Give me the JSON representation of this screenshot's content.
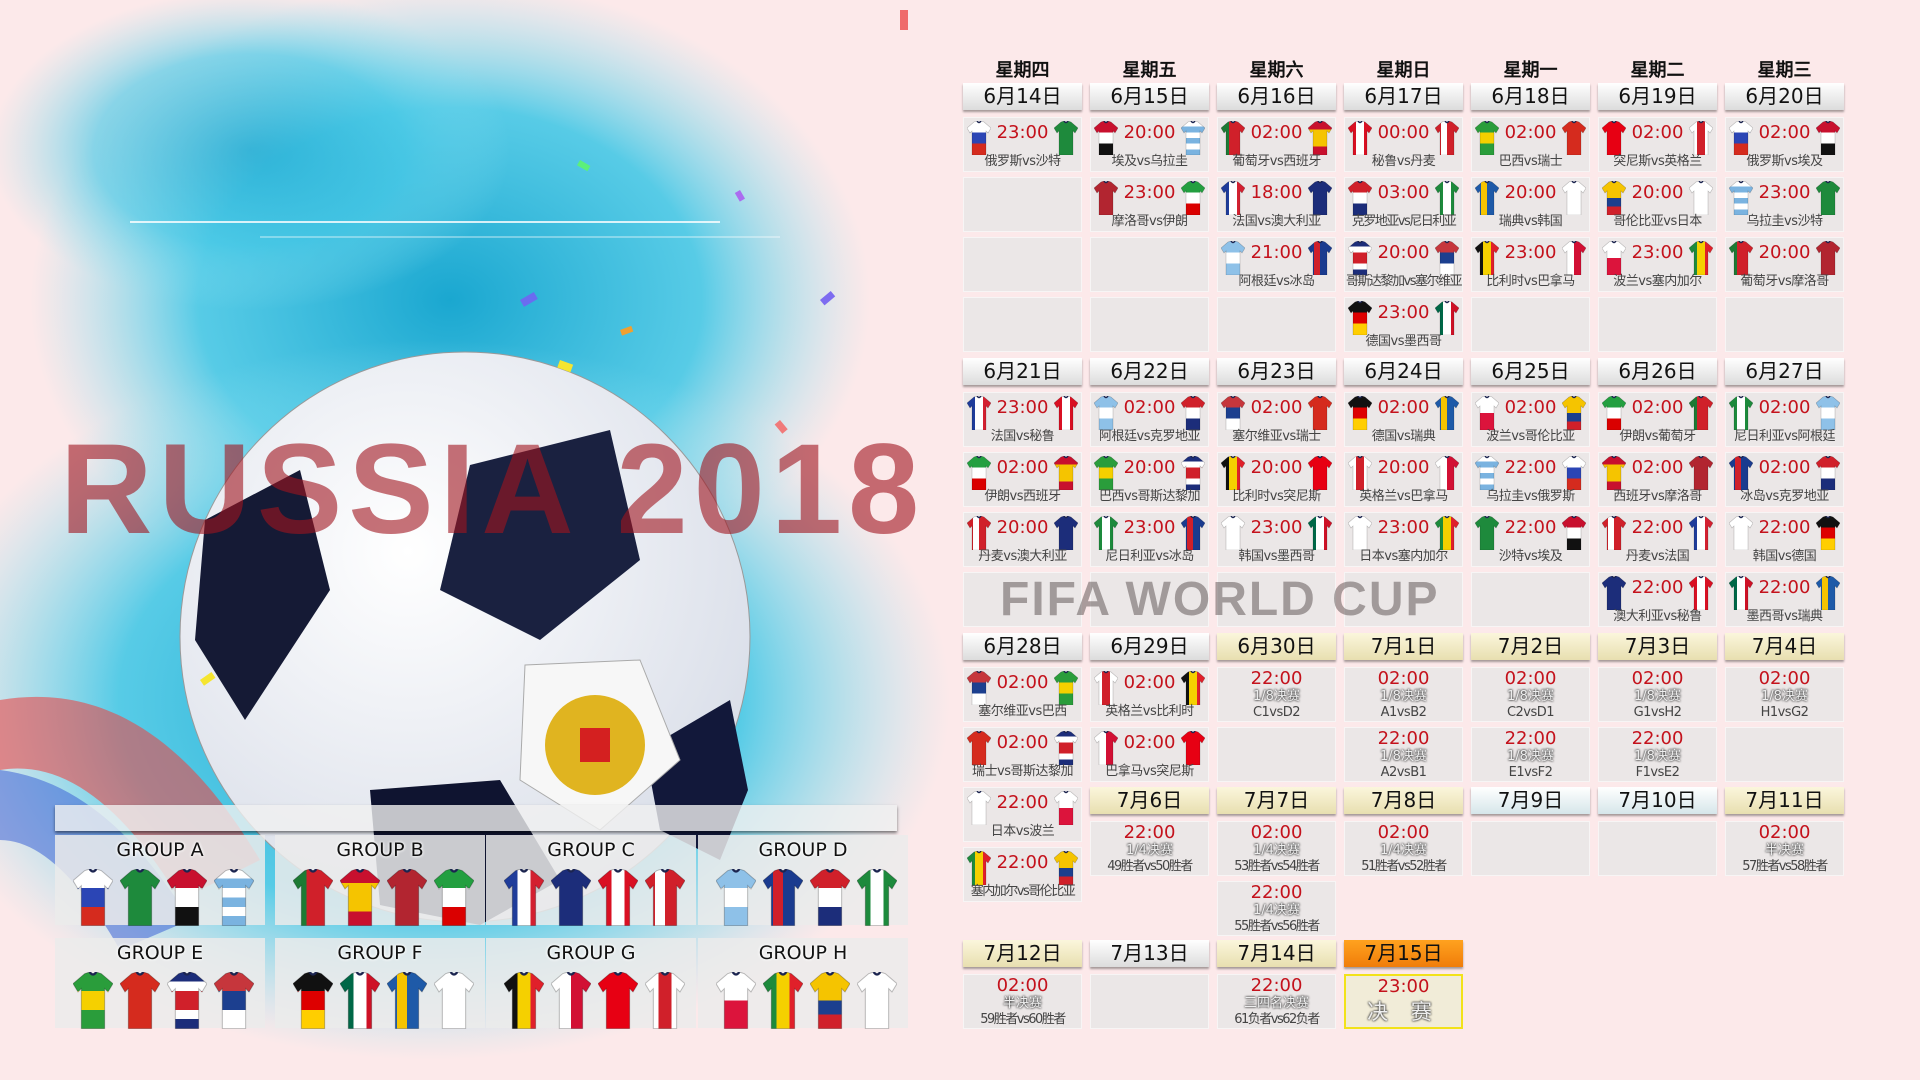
{
  "watermark": {
    "line1": "FIFA WORLD CUP",
    "line2": "RUSSIA 2018"
  },
  "weekdays": [
    "星期四",
    "星期五",
    "星期六",
    "星期日",
    "星期一",
    "星期二",
    "星期三"
  ],
  "colors": {
    "time": "#c4121c",
    "background": "#fce9ea",
    "final_header": "#f7931e",
    "final_border": "#f2e21a"
  },
  "jerseys": {
    "rus": {
      "dir": "h",
      "colors": [
        "#ffffff",
        "#2b45b5",
        "#d52b1e"
      ]
    },
    "ksa": {
      "dir": "h",
      "colors": [
        "#1e8a3c"
      ]
    },
    "egy": {
      "dir": "h",
      "colors": [
        "#c8102e",
        "#ffffff",
        "#111111"
      ]
    },
    "uru": {
      "dir": "h",
      "colors": [
        "#ffffff",
        "#7ab3e0",
        "#ffffff",
        "#7ab3e0",
        "#ffffff",
        "#7ab3e0"
      ]
    },
    "por": {
      "dir": "v",
      "colors": [
        "#1d7a34",
        "#d0202a",
        "#d0202a"
      ]
    },
    "esp": {
      "dir": "h",
      "colors": [
        "#c8102e",
        "#f5c400",
        "#f5c400",
        "#c8102e"
      ]
    },
    "mar": {
      "dir": "h",
      "colors": [
        "#b22530"
      ]
    },
    "irn": {
      "dir": "h",
      "colors": [
        "#239f40",
        "#ffffff",
        "#da0000"
      ]
    },
    "fra": {
      "dir": "v",
      "colors": [
        "#1f3c9a",
        "#ffffff",
        "#d32030"
      ]
    },
    "aus": {
      "dir": "h",
      "colors": [
        "#1c2d7a"
      ]
    },
    "per": {
      "dir": "v",
      "colors": [
        "#d91023",
        "#ffffff",
        "#d91023"
      ]
    },
    "den": {
      "dir": "v",
      "colors": [
        "#d0202a",
        "#ffffff",
        "#d0202a",
        "#d0202a"
      ]
    },
    "arg": {
      "dir": "h",
      "colors": [
        "#8ec1e8",
        "#ffffff",
        "#8ec1e8"
      ]
    },
    "isl": {
      "dir": "v",
      "colors": [
        "#1a3b8f",
        "#d0202a",
        "#1a3b8f",
        "#1a3b8f"
      ]
    },
    "cro": {
      "dir": "h",
      "colors": [
        "#d0202a",
        "#ffffff",
        "#1c2d7a"
      ]
    },
    "nga": {
      "dir": "v",
      "colors": [
        "#1d8a3c",
        "#ffffff",
        "#1d8a3c"
      ]
    },
    "bra": {
      "dir": "h",
      "colors": [
        "#2a9d3b",
        "#f5d000",
        "#2a9d3b"
      ]
    },
    "sui": {
      "dir": "h",
      "colors": [
        "#d52b1e"
      ]
    },
    "crc": {
      "dir": "h",
      "colors": [
        "#1c2d7a",
        "#ffffff",
        "#d0202a",
        "#d0202a",
        "#ffffff",
        "#1c2d7a"
      ]
    },
    "srb": {
      "dir": "h",
      "colors": [
        "#c6363c",
        "#1c3f8f",
        "#ffffff"
      ]
    },
    "ger": {
      "dir": "h",
      "colors": [
        "#111111",
        "#dd0000",
        "#ffce00"
      ]
    },
    "mex": {
      "dir": "v",
      "colors": [
        "#006847",
        "#ffffff",
        "#ce1126"
      ]
    },
    "swe": {
      "dir": "v",
      "colors": [
        "#1e5aa8",
        "#f5c400",
        "#1e5aa8",
        "#1e5aa8"
      ]
    },
    "kor": {
      "dir": "h",
      "colors": [
        "#ffffff"
      ]
    },
    "bel": {
      "dir": "v",
      "colors": [
        "#111111",
        "#f5d000",
        "#e0202a"
      ]
    },
    "pan": {
      "dir": "v",
      "colors": [
        "#ffffff",
        "#d21034"
      ]
    },
    "tun": {
      "dir": "h",
      "colors": [
        "#e70013"
      ]
    },
    "eng": {
      "dir": "v",
      "colors": [
        "#ffffff",
        "#d0202a",
        "#ffffff"
      ]
    },
    "pol": {
      "dir": "h",
      "colors": [
        "#ffffff",
        "#dc143c"
      ]
    },
    "sen": {
      "dir": "v",
      "colors": [
        "#1d8a3c",
        "#f5d000",
        "#e0202a"
      ]
    },
    "col": {
      "dir": "h",
      "colors": [
        "#f5c400",
        "#f5c400",
        "#1c3f8f",
        "#d0202a"
      ]
    },
    "jpn": {
      "dir": "h",
      "colors": [
        "#ffffff"
      ]
    }
  },
  "schedule": [
    {
      "date": "6月14日",
      "matches": [
        {
          "time": "23:00",
          "home": "rus",
          "away": "ksa",
          "label": "俄罗斯vs沙特"
        }
      ]
    },
    {
      "date": "6月15日",
      "matches": [
        {
          "time": "20:00",
          "home": "egy",
          "away": "uru",
          "label": "埃及vs乌拉圭"
        },
        {
          "time": "23:00",
          "home": "mar",
          "away": "irn",
          "label": "摩洛哥vs伊朗"
        }
      ]
    },
    {
      "date": "6月16日",
      "matches": [
        {
          "time": "02:00",
          "home": "por",
          "away": "esp",
          "label": "葡萄牙vs西班牙"
        },
        {
          "time": "18:00",
          "home": "fra",
          "away": "aus",
          "label": "法国vs澳大利亚"
        },
        {
          "time": "21:00",
          "home": "arg",
          "away": "isl",
          "label": "阿根廷vs冰岛"
        }
      ]
    },
    {
      "date": "6月17日",
      "matches": [
        {
          "time": "00:00",
          "home": "per",
          "away": "den",
          "label": "秘鲁vs丹麦"
        },
        {
          "time": "03:00",
          "home": "cro",
          "away": "nga",
          "label": "克罗地亚vs尼日利亚"
        },
        {
          "time": "20:00",
          "home": "crc",
          "away": "srb",
          "label": "哥斯达黎加vs塞尔维亚"
        },
        {
          "time": "23:00",
          "home": "ger",
          "away": "mex",
          "label": "德国vs墨西哥"
        }
      ]
    },
    {
      "date": "6月18日",
      "matches": [
        {
          "time": "02:00",
          "home": "bra",
          "away": "sui",
          "label": "巴西vs瑞士"
        },
        {
          "time": "20:00",
          "home": "swe",
          "away": "kor",
          "label": "瑞典vs韩国"
        },
        {
          "time": "23:00",
          "home": "bel",
          "away": "pan",
          "label": "比利时vs巴拿马"
        }
      ]
    },
    {
      "date": "6月19日",
      "matches": [
        {
          "time": "02:00",
          "home": "tun",
          "away": "eng",
          "label": "突尼斯vs英格兰"
        },
        {
          "time": "20:00",
          "home": "col",
          "away": "jpn",
          "label": "哥伦比亚vs日本"
        },
        {
          "time": "23:00",
          "home": "pol",
          "away": "sen",
          "label": "波兰vs塞内加尔"
        }
      ]
    },
    {
      "date": "6月20日",
      "matches": [
        {
          "time": "02:00",
          "home": "rus",
          "away": "egy",
          "label": "俄罗斯vs埃及"
        },
        {
          "time": "23:00",
          "home": "uru",
          "away": "ksa",
          "label": "乌拉圭vs沙特"
        },
        {
          "time": "20:00",
          "home": "por",
          "away": "mar",
          "label": "葡萄牙vs摩洛哥"
        }
      ]
    },
    {
      "date": "6月21日",
      "matches": [
        {
          "time": "23:00",
          "home": "fra",
          "away": "per",
          "label": "法国vs秘鲁"
        },
        {
          "time": "02:00",
          "home": "irn",
          "away": "esp",
          "label": "伊朗vs西班牙"
        },
        {
          "time": "20:00",
          "home": "den",
          "away": "aus",
          "label": "丹麦vs澳大利亚"
        }
      ]
    },
    {
      "date": "6月22日",
      "matches": [
        {
          "time": "02:00",
          "home": "arg",
          "away": "cro",
          "label": "阿根廷vs克罗地亚"
        },
        {
          "time": "20:00",
          "home": "bra",
          "away": "crc",
          "label": "巴西vs哥斯达黎加"
        },
        {
          "time": "23:00",
          "home": "nga",
          "away": "isl",
          "label": "尼日利亚vs冰岛"
        }
      ]
    },
    {
      "date": "6月23日",
      "matches": [
        {
          "time": "02:00",
          "home": "srb",
          "away": "sui",
          "label": "塞尔维亚vs瑞士"
        },
        {
          "time": "20:00",
          "home": "bel",
          "away": "tun",
          "label": "比利时vs突尼斯"
        },
        {
          "time": "23:00",
          "home": "kor",
          "away": "mex",
          "label": "韩国vs墨西哥"
        }
      ]
    },
    {
      "date": "6月24日",
      "matches": [
        {
          "time": "02:00",
          "home": "ger",
          "away": "swe",
          "label": "德国vs瑞典"
        },
        {
          "time": "20:00",
          "home": "eng",
          "away": "pan",
          "label": "英格兰vs巴拿马"
        },
        {
          "time": "23:00",
          "home": "jpn",
          "away": "sen",
          "label": "日本vs塞内加尔"
        }
      ]
    },
    {
      "date": "6月25日",
      "matches": [
        {
          "time": "02:00",
          "home": "pol",
          "away": "col",
          "label": "波兰vs哥伦比亚"
        },
        {
          "time": "22:00",
          "home": "uru",
          "away": "rus",
          "label": "乌拉圭vs俄罗斯"
        },
        {
          "time": "22:00",
          "home": "ksa",
          "away": "egy",
          "label": "沙特vs埃及"
        }
      ]
    },
    {
      "date": "6月26日",
      "matches": [
        {
          "time": "02:00",
          "home": "irn",
          "away": "por",
          "label": "伊朗vs葡萄牙"
        },
        {
          "time": "02:00",
          "home": "esp",
          "away": "mar",
          "label": "西班牙vs摩洛哥"
        },
        {
          "time": "22:00",
          "home": "den",
          "away": "fra",
          "label": "丹麦vs法国"
        },
        {
          "time": "22:00",
          "home": "aus",
          "away": "per",
          "label": "澳大利亚vs秘鲁"
        }
      ]
    },
    {
      "date": "6月27日",
      "matches": [
        {
          "time": "02:00",
          "home": "nga",
          "away": "arg",
          "label": "尼日利亚vs阿根廷"
        },
        {
          "time": "02:00",
          "home": "isl",
          "away": "cro",
          "label": "冰岛vs克罗地亚"
        },
        {
          "time": "22:00",
          "home": "kor",
          "away": "ger",
          "label": "韩国vs德国"
        },
        {
          "time": "22:00",
          "home": "mex",
          "away": "swe",
          "label": "墨西哥vs瑞典"
        }
      ]
    },
    {
      "date": "6月28日",
      "matches": [
        {
          "time": "02:00",
          "home": "srb",
          "away": "bra",
          "label": "塞尔维亚vs巴西"
        },
        {
          "time": "02:00",
          "home": "sui",
          "away": "crc",
          "label": "瑞士vs哥斯达黎加"
        },
        {
          "time": "22:00",
          "home": "jpn",
          "away": "pol",
          "label": "日本vs波兰"
        },
        {
          "time": "22:00",
          "home": "sen",
          "away": "col",
          "label": "塞内加尔vs哥伦比亚"
        }
      ]
    },
    {
      "date": "6月29日",
      "matches": [
        {
          "time": "02:00",
          "home": "eng",
          "away": "bel",
          "label": "英格兰vs比利时"
        },
        {
          "time": "02:00",
          "home": "pan",
          "away": "tun",
          "label": "巴拿马vs突尼斯"
        }
      ]
    },
    {
      "date": "6月30日",
      "style": "ko",
      "matches": [
        {
          "time": "22:00",
          "stage": "1/8决赛",
          "label": "C1vsD2"
        }
      ]
    },
    {
      "date": "7月1日",
      "style": "ko",
      "matches": [
        {
          "time": "02:00",
          "stage": "1/8决赛",
          "label": "A1vsB2"
        },
        {
          "time": "22:00",
          "stage": "1/8决赛",
          "label": "A2vsB1"
        }
      ]
    },
    {
      "date": "7月2日",
      "style": "ko",
      "matches": [
        {
          "time": "02:00",
          "stage": "1/8决赛",
          "label": "C2vsD1"
        },
        {
          "time": "22:00",
          "stage": "1/8决赛",
          "label": "E1vsF2"
        }
      ]
    },
    {
      "date": "7月3日",
      "style": "ko",
      "matches": [
        {
          "time": "02:00",
          "stage": "1/8决赛",
          "label": "G1vsH2"
        },
        {
          "time": "22:00",
          "stage": "1/8决赛",
          "label": "F1vsE2"
        }
      ]
    },
    {
      "date": "7月4日",
      "style": "ko",
      "matches": [
        {
          "time": "02:00",
          "stage": "1/8决赛",
          "label": "H1vsG2"
        }
      ]
    },
    {
      "date": "7月6日",
      "style": "ko",
      "matches": [
        {
          "time": "22:00",
          "stage": "1/4决赛",
          "label": "49胜者vs50胜者"
        }
      ]
    },
    {
      "date": "7月7日",
      "style": "ko",
      "matches": [
        {
          "time": "02:00",
          "stage": "1/4决赛",
          "label": "53胜者vs54胜者"
        },
        {
          "time": "22:00",
          "stage": "1/4决赛",
          "label": "55胜者vs56胜者"
        }
      ]
    },
    {
      "date": "7月8日",
      "style": "ko",
      "matches": [
        {
          "time": "02:00",
          "stage": "1/4决赛",
          "label": "51胜者vs52胜者"
        }
      ]
    },
    {
      "date": "7月9日",
      "style": "blue",
      "matches": []
    },
    {
      "date": "7月10日",
      "style": "blue",
      "matches": []
    },
    {
      "date": "7月11日",
      "style": "ko",
      "matches": [
        {
          "time": "02:00",
          "stage": "半决赛",
          "label": "57胜者vs58胜者"
        }
      ]
    },
    {
      "date": "7月12日",
      "style": "ko",
      "matches": [
        {
          "time": "02:00",
          "stage": "半决赛",
          "label": "59胜者vs60胜者"
        }
      ]
    },
    {
      "date": "7月13日",
      "style": "plain",
      "matches": []
    },
    {
      "date": "7月14日",
      "style": "ko",
      "matches": [
        {
          "time": "22:00",
          "stage": "三四名决赛",
          "label": "61负者vs62负者"
        }
      ]
    },
    {
      "date": "7月15日",
      "style": "final",
      "matches": [
        {
          "time": "23:00",
          "stage": "决 赛",
          "label": ""
        }
      ]
    }
  ],
  "groups": [
    {
      "name": "GROUP A",
      "teams": [
        "rus",
        "ksa",
        "egy",
        "uru"
      ]
    },
    {
      "name": "GROUP B",
      "teams": [
        "por",
        "esp",
        "mar",
        "irn"
      ]
    },
    {
      "name": "GROUP C",
      "teams": [
        "fra",
        "aus",
        "per",
        "den"
      ]
    },
    {
      "name": "GROUP D",
      "teams": [
        "arg",
        "isl",
        "cro",
        "nga"
      ]
    },
    {
      "name": "GROUP E",
      "teams": [
        "bra",
        "sui",
        "crc",
        "srb"
      ]
    },
    {
      "name": "GROUP F",
      "teams": [
        "ger",
        "mex",
        "swe",
        "kor"
      ]
    },
    {
      "name": "GROUP G",
      "teams": [
        "bel",
        "pan",
        "tun",
        "eng"
      ]
    },
    {
      "name": "GROUP H",
      "teams": [
        "pol",
        "sen",
        "col",
        "jpn"
      ]
    }
  ]
}
